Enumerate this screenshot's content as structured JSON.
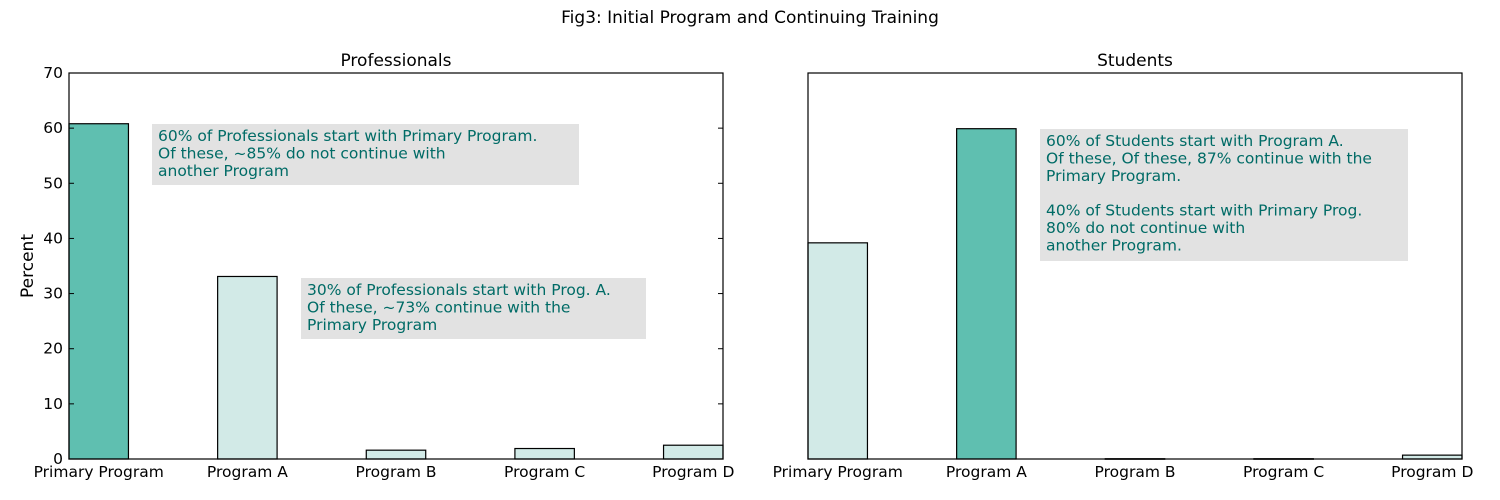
{
  "figure_title": "Fig3: Initial Program and Continuing Training",
  "colors": {
    "highlight": "#5fbfb0",
    "light": "#d2eae7",
    "annotation_text": "#006b66",
    "annotation_bg": "#e2e2e2"
  },
  "chart_data": [
    {
      "type": "bar",
      "title": "Professionals",
      "ylabel": "Percent",
      "xlabel": "",
      "ylim": [
        0,
        70
      ],
      "yticks": [
        0,
        10,
        20,
        30,
        40,
        50,
        60,
        70
      ],
      "grid": false,
      "categories": [
        "Primary Program",
        "Program A",
        "Program B",
        "Program C",
        "Program D"
      ],
      "values": [
        60.8,
        33.1,
        1.6,
        1.9,
        2.5
      ],
      "highlight": [
        true,
        false,
        false,
        false,
        false
      ],
      "annotations": [
        {
          "lines": [
            "60% of Professionals start with Primary Program.",
            "Of these, ~85% do not continue with",
            "another Program"
          ]
        },
        {
          "lines": [
            "30% of Professionals start with Prog. A.",
            "Of these, ~73% continue with the",
            "Primary Program"
          ]
        }
      ]
    },
    {
      "type": "bar",
      "title": "Students",
      "ylabel": "",
      "xlabel": "",
      "ylim": [
        0,
        70
      ],
      "yticks": [],
      "grid": false,
      "categories": [
        "Primary Program",
        "Program A",
        "Program B",
        "Program C",
        "Program D"
      ],
      "values": [
        39.2,
        59.9,
        0.05,
        0.05,
        0.7
      ],
      "highlight": [
        false,
        true,
        false,
        false,
        false
      ],
      "annotations": [
        {
          "lines": [
            "60% of Students start with Program A.",
            "Of these, Of these, 87% continue with the",
            "Primary Program.",
            "",
            "40% of Students start with Primary Prog.",
            "80% do not continue with",
            "another Program."
          ]
        }
      ]
    }
  ]
}
